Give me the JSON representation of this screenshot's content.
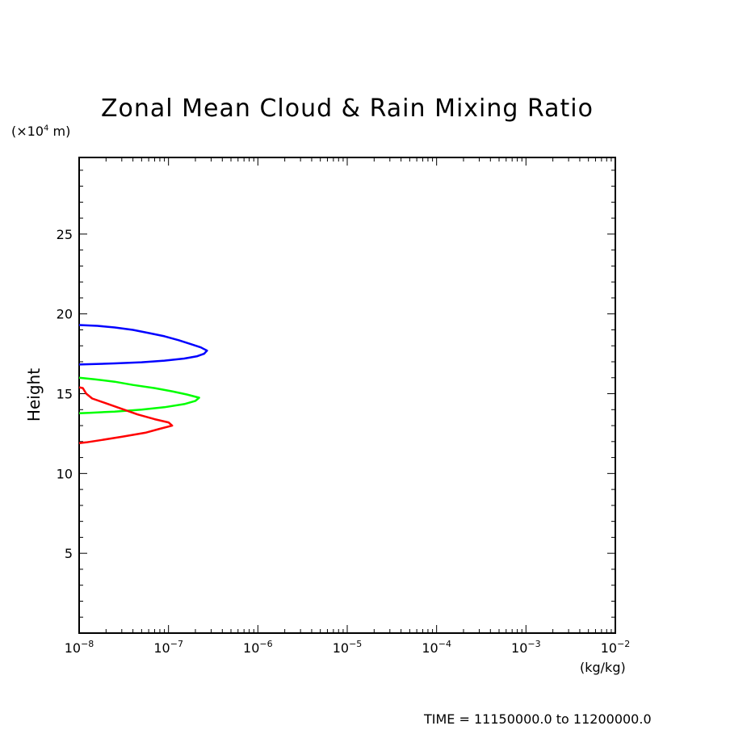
{
  "chart_data": {
    "type": "line",
    "title": "Zonal Mean Cloud & Rain Mixing Ratio",
    "y_unit": "(×10⁴ m)",
    "y_unit_parts": {
      "prefix": "(×10",
      "exp": "4",
      "suffix": " m)"
    },
    "ylabel": "Height",
    "xlabel": "(kg/kg)",
    "x_scale": "log",
    "xlim": [
      1e-08,
      0.01
    ],
    "ylim": [
      0,
      29.8
    ],
    "x_ticks": [
      {
        "value": 1e-08,
        "base": "10",
        "exp": "−8"
      },
      {
        "value": 1e-07,
        "base": "10",
        "exp": "−7"
      },
      {
        "value": 1e-06,
        "base": "10",
        "exp": "−6"
      },
      {
        "value": 1e-05,
        "base": "10",
        "exp": "−5"
      },
      {
        "value": 0.0001,
        "base": "10",
        "exp": "−4"
      },
      {
        "value": 0.001,
        "base": "10",
        "exp": "−3"
      },
      {
        "value": 0.01,
        "base": "10",
        "exp": "−2"
      }
    ],
    "y_ticks": [
      5,
      10,
      15,
      20,
      25
    ],
    "y_minor_step": 1,
    "series": [
      {
        "color": "#0000ff",
        "points": [
          [
            1e-08,
            19.3
          ],
          [
            1.6e-08,
            19.25
          ],
          [
            2.5e-08,
            19.15
          ],
          [
            4e-08,
            19.0
          ],
          [
            6e-08,
            18.8
          ],
          [
            9e-08,
            18.6
          ],
          [
            1.3e-07,
            18.35
          ],
          [
            1.8e-07,
            18.1
          ],
          [
            2.3e-07,
            17.9
          ],
          [
            2.7e-07,
            17.7
          ],
          [
            2.5e-07,
            17.5
          ],
          [
            2.1e-07,
            17.35
          ],
          [
            1.5e-07,
            17.2
          ],
          [
            9e-08,
            17.07
          ],
          [
            5e-08,
            16.97
          ],
          [
            2.5e-08,
            16.9
          ],
          [
            1.3e-08,
            16.85
          ],
          [
            1e-08,
            16.83
          ]
        ]
      },
      {
        "color": "#00ff00",
        "points": [
          [
            1e-08,
            16.0
          ],
          [
            1.5e-08,
            15.9
          ],
          [
            2.5e-08,
            15.75
          ],
          [
            4e-08,
            15.55
          ],
          [
            7e-08,
            15.35
          ],
          [
            1.1e-07,
            15.15
          ],
          [
            1.6e-07,
            14.95
          ],
          [
            2.2e-07,
            14.75
          ],
          [
            2e-07,
            14.55
          ],
          [
            1.5e-07,
            14.35
          ],
          [
            9e-08,
            14.15
          ],
          [
            5e-08,
            14.0
          ],
          [
            2.5e-08,
            13.88
          ],
          [
            1.3e-08,
            13.8
          ],
          [
            1e-08,
            13.77
          ]
        ]
      },
      {
        "color": "#ff0000",
        "points": [
          [
            1e-08,
            15.4
          ],
          [
            1.1e-08,
            15.35
          ],
          [
            1.2e-08,
            15.0
          ],
          [
            1.4e-08,
            14.7
          ],
          [
            2e-08,
            14.4
          ],
          [
            3e-08,
            14.05
          ],
          [
            4.5e-08,
            13.7
          ],
          [
            7e-08,
            13.4
          ],
          [
            1e-07,
            13.2
          ],
          [
            1.1e-07,
            13.0
          ],
          [
            8e-08,
            12.8
          ],
          [
            5.5e-08,
            12.55
          ],
          [
            3e-08,
            12.3
          ],
          [
            1.8e-08,
            12.1
          ],
          [
            1.2e-08,
            11.95
          ],
          [
            1e-08,
            11.9
          ]
        ]
      }
    ]
  },
  "footer": {
    "time_label": "TIME = 11150000.0 to 11200000.0"
  }
}
